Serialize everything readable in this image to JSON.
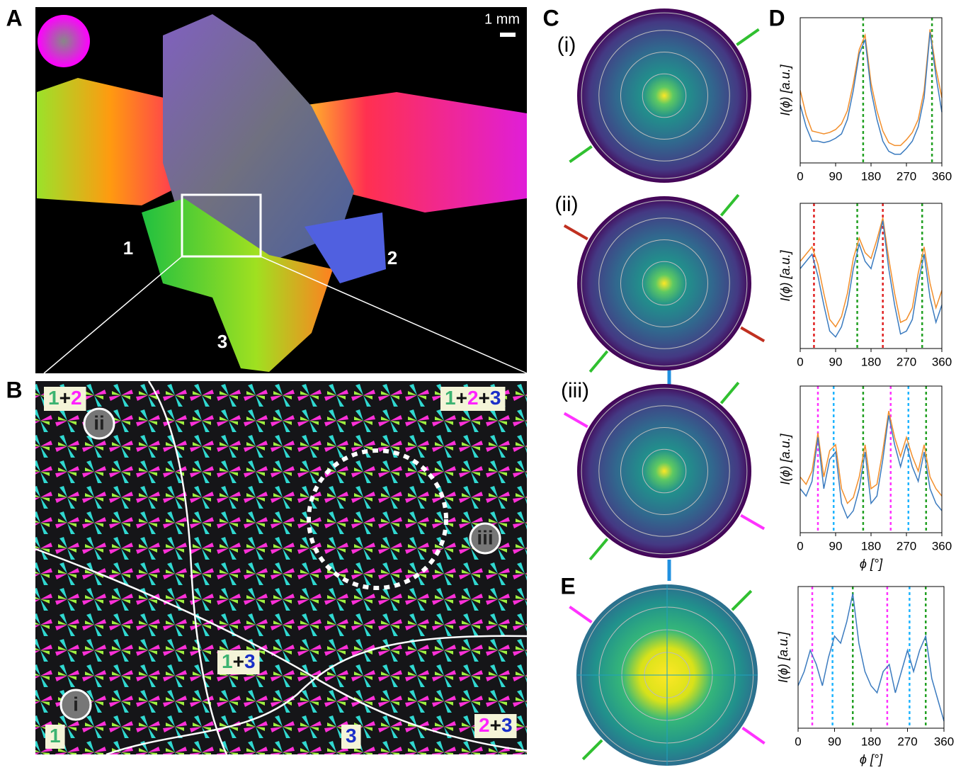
{
  "panel_labels": [
    "A",
    "B",
    "C",
    "D",
    "E"
  ],
  "scale_bar": "1 mm",
  "region_labels": [
    "1",
    "2",
    "3"
  ],
  "pattern_labels": [
    "(i)",
    "(ii)",
    "(iii)"
  ],
  "point_labels": [
    "i",
    "ii",
    "iii"
  ],
  "zone_labels": [
    {
      "parts": [
        {
          "text": "1",
          "color": "#3cb371"
        },
        {
          "text": "+",
          "color": "#111111"
        },
        {
          "text": "2",
          "color": "#ff22ff"
        }
      ]
    },
    {
      "parts": [
        {
          "text": "1",
          "color": "#3cb371"
        },
        {
          "text": "+",
          "color": "#111111"
        },
        {
          "text": "2",
          "color": "#ff22ff"
        },
        {
          "text": "+",
          "color": "#111111"
        },
        {
          "text": "3",
          "color": "#1a2fc8"
        }
      ]
    },
    {
      "parts": [
        {
          "text": "1",
          "color": "#3cb371"
        },
        {
          "text": "+",
          "color": "#111111"
        },
        {
          "text": "3",
          "color": "#1a2fc8"
        }
      ]
    },
    {
      "parts": [
        {
          "text": "1",
          "color": "#3cb371"
        }
      ]
    },
    {
      "parts": [
        {
          "text": "3",
          "color": "#1a2fc8"
        }
      ]
    },
    {
      "parts": [
        {
          "text": "2",
          "color": "#ff22ff"
        },
        {
          "text": "+",
          "color": "#111111"
        },
        {
          "text": "3",
          "color": "#1a2fc8"
        }
      ]
    }
  ],
  "chart_data": [
    {
      "type": "line",
      "y_label": "I(ϕ) [a.u.]",
      "x": [
        0,
        15,
        30,
        45,
        60,
        75,
        90,
        105,
        120,
        135,
        150,
        165,
        180,
        195,
        210,
        225,
        240,
        255,
        270,
        285,
        300,
        315,
        330,
        345,
        360
      ],
      "series": [
        {
          "color": "#f28e2b",
          "values": [
            0.5,
            0.33,
            0.22,
            0.21,
            0.2,
            0.21,
            0.23,
            0.27,
            0.36,
            0.55,
            0.78,
            0.88,
            0.55,
            0.36,
            0.22,
            0.14,
            0.12,
            0.12,
            0.16,
            0.21,
            0.3,
            0.5,
            0.92,
            0.65,
            0.45
          ]
        },
        {
          "color": "#3b7bbf",
          "values": [
            0.4,
            0.25,
            0.15,
            0.15,
            0.14,
            0.15,
            0.17,
            0.2,
            0.3,
            0.5,
            0.75,
            0.85,
            0.5,
            0.3,
            0.15,
            0.08,
            0.06,
            0.06,
            0.1,
            0.15,
            0.25,
            0.45,
            0.9,
            0.6,
            0.35
          ]
        }
      ],
      "vlines": [
        {
          "x": 160,
          "color": "#22a022"
        },
        {
          "x": 335,
          "color": "#22a022"
        }
      ],
      "xlim": [
        0,
        360
      ],
      "ylim": [
        0,
        1
      ],
      "xticks": [
        0,
        90,
        180,
        270,
        360
      ]
    },
    {
      "type": "line",
      "y_label": "I(ϕ) [a.u.]",
      "x": [
        0,
        15,
        30,
        45,
        60,
        75,
        90,
        105,
        120,
        135,
        150,
        165,
        180,
        195,
        210,
        225,
        240,
        255,
        270,
        285,
        300,
        315,
        330,
        345,
        360
      ],
      "series": [
        {
          "color": "#f28e2b",
          "values": [
            0.6,
            0.65,
            0.7,
            0.58,
            0.38,
            0.2,
            0.15,
            0.22,
            0.38,
            0.62,
            0.76,
            0.66,
            0.62,
            0.75,
            0.9,
            0.62,
            0.38,
            0.18,
            0.2,
            0.28,
            0.52,
            0.7,
            0.45,
            0.28,
            0.4
          ]
        },
        {
          "color": "#3b7bbf",
          "values": [
            0.55,
            0.6,
            0.65,
            0.5,
            0.3,
            0.12,
            0.08,
            0.15,
            0.3,
            0.55,
            0.72,
            0.6,
            0.55,
            0.7,
            0.88,
            0.55,
            0.3,
            0.1,
            0.12,
            0.2,
            0.45,
            0.65,
            0.35,
            0.18,
            0.3
          ]
        }
      ],
      "vlines": [
        {
          "x": 35,
          "color": "#e02020"
        },
        {
          "x": 145,
          "color": "#22a022"
        },
        {
          "x": 210,
          "color": "#e02020"
        },
        {
          "x": 310,
          "color": "#22a022"
        }
      ],
      "xlim": [
        0,
        360
      ],
      "ylim": [
        0,
        1
      ],
      "xticks": [
        0,
        90,
        180,
        270,
        360
      ]
    },
    {
      "type": "line",
      "y_label": "I(ϕ) [a.u.]",
      "x_label": "ϕ [°]",
      "x": [
        0,
        15,
        30,
        45,
        60,
        75,
        90,
        105,
        120,
        135,
        150,
        165,
        180,
        195,
        210,
        225,
        240,
        255,
        270,
        285,
        300,
        315,
        330,
        345,
        360
      ],
      "series": [
        {
          "color": "#f28e2b",
          "values": [
            0.38,
            0.33,
            0.42,
            0.68,
            0.38,
            0.56,
            0.6,
            0.3,
            0.2,
            0.24,
            0.38,
            0.6,
            0.3,
            0.33,
            0.56,
            0.83,
            0.65,
            0.52,
            0.65,
            0.52,
            0.42,
            0.6,
            0.38,
            0.3,
            0.25
          ]
        },
        {
          "color": "#3b7bbf",
          "values": [
            0.3,
            0.25,
            0.35,
            0.65,
            0.3,
            0.5,
            0.55,
            0.2,
            0.1,
            0.15,
            0.3,
            0.55,
            0.2,
            0.25,
            0.5,
            0.8,
            0.6,
            0.45,
            0.6,
            0.45,
            0.35,
            0.55,
            0.3,
            0.2,
            0.15
          ]
        }
      ],
      "vlines": [
        {
          "x": 45,
          "color": "#ff33ff"
        },
        {
          "x": 85,
          "color": "#1eb4ff"
        },
        {
          "x": 160,
          "color": "#22a022"
        },
        {
          "x": 230,
          "color": "#ff33ff"
        },
        {
          "x": 275,
          "color": "#1eb4ff"
        },
        {
          "x": 320,
          "color": "#22a022"
        }
      ],
      "xlim": [
        0,
        360
      ],
      "ylim": [
        0,
        1
      ],
      "xticks": [
        0,
        90,
        180,
        270,
        360
      ]
    },
    {
      "type": "line",
      "y_label": "I(ϕ) [a.u.]",
      "x_label": "ϕ [°]",
      "x": [
        0,
        15,
        30,
        45,
        60,
        75,
        90,
        105,
        120,
        135,
        150,
        165,
        180,
        195,
        210,
        225,
        240,
        255,
        270,
        285,
        300,
        315,
        330,
        345,
        360
      ],
      "series": [
        {
          "color": "#3b7bbf",
          "values": [
            0.3,
            0.4,
            0.55,
            0.45,
            0.3,
            0.5,
            0.65,
            0.6,
            0.75,
            0.95,
            0.6,
            0.4,
            0.3,
            0.25,
            0.4,
            0.45,
            0.25,
            0.4,
            0.55,
            0.4,
            0.55,
            0.65,
            0.35,
            0.2,
            0.05
          ]
        }
      ],
      "vlines": [
        {
          "x": 35,
          "color": "#ff33ff"
        },
        {
          "x": 85,
          "color": "#1eb4ff"
        },
        {
          "x": 135,
          "color": "#22a022"
        },
        {
          "x": 220,
          "color": "#ff33ff"
        },
        {
          "x": 275,
          "color": "#1eb4ff"
        },
        {
          "x": 315,
          "color": "#22a022"
        }
      ],
      "xlim": [
        0,
        360
      ],
      "ylim": [
        0,
        1
      ],
      "xticks": [
        0,
        90,
        180,
        270,
        360
      ]
    }
  ]
}
